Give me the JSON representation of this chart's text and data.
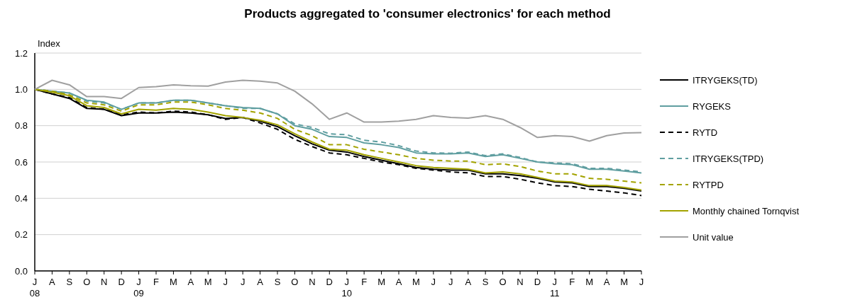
{
  "chart_data": {
    "type": "line",
    "title": "Products aggregated to 'consumer electronics' for each method",
    "ylabel": "Index",
    "categories": [
      "J\n08",
      "A",
      "S",
      "O",
      "N",
      "D",
      "J\n09",
      "F",
      "M",
      "A",
      "M",
      "J",
      "J",
      "A",
      "S",
      "O",
      "N",
      "D",
      "J\n10",
      "F",
      "M",
      "A",
      "M",
      "J",
      "J",
      "A",
      "S",
      "O",
      "N",
      "D",
      "J\n11",
      "F",
      "M",
      "A",
      "M",
      "J"
    ],
    "ylim": [
      0,
      1.2
    ],
    "yticks": [
      {
        "value": 0,
        "label": "0.0"
      },
      {
        "value": 0.2,
        "label": "0.2"
      },
      {
        "value": 0.4,
        "label": "0.4"
      },
      {
        "value": 0.6,
        "label": "0.6"
      },
      {
        "value": 0.8,
        "label": "0.8"
      },
      {
        "value": 1,
        "label": "1.0"
      },
      {
        "value": 1.2,
        "label": "1.2"
      }
    ],
    "grid": "y",
    "legend": "right",
    "series": [
      {
        "name": "ITRYGEKS(TD)",
        "color": "#000000",
        "line_style": "solid",
        "values": [
          1.0,
          0.975,
          0.95,
          0.895,
          0.89,
          0.855,
          0.87,
          0.87,
          0.875,
          0.87,
          0.86,
          0.84,
          0.845,
          0.825,
          0.795,
          0.745,
          0.7,
          0.665,
          0.655,
          0.63,
          0.61,
          0.59,
          0.57,
          0.56,
          0.555,
          0.555,
          0.535,
          0.535,
          0.525,
          0.51,
          0.49,
          0.485,
          0.465,
          0.465,
          0.455,
          0.44
        ]
      },
      {
        "name": "RYGEKS",
        "color": "#5f9ea0",
        "line_style": "solid",
        "values": [
          1.0,
          0.99,
          0.98,
          0.94,
          0.93,
          0.89,
          0.925,
          0.925,
          0.94,
          0.94,
          0.925,
          0.91,
          0.9,
          0.895,
          0.865,
          0.8,
          0.78,
          0.74,
          0.735,
          0.705,
          0.695,
          0.68,
          0.65,
          0.645,
          0.645,
          0.65,
          0.63,
          0.64,
          0.62,
          0.6,
          0.59,
          0.585,
          0.56,
          0.56,
          0.55,
          0.54
        ]
      },
      {
        "name": "RYTD",
        "color": "#000000",
        "line_style": "dashed",
        "values": [
          1.0,
          0.975,
          0.955,
          0.9,
          0.89,
          0.86,
          0.875,
          0.87,
          0.88,
          0.875,
          0.86,
          0.835,
          0.845,
          0.815,
          0.78,
          0.725,
          0.685,
          0.65,
          0.64,
          0.62,
          0.6,
          0.585,
          0.565,
          0.555,
          0.545,
          0.54,
          0.52,
          0.52,
          0.505,
          0.485,
          0.47,
          0.465,
          0.45,
          0.44,
          0.43,
          0.415
        ]
      },
      {
        "name": "ITRYGEKS(TPD)",
        "color": "#5f9ea0",
        "line_style": "dashed",
        "values": [
          1.0,
          0.99,
          0.98,
          0.935,
          0.925,
          0.89,
          0.925,
          0.925,
          0.94,
          0.94,
          0.925,
          0.91,
          0.895,
          0.895,
          0.865,
          0.81,
          0.79,
          0.755,
          0.75,
          0.72,
          0.71,
          0.69,
          0.66,
          0.65,
          0.648,
          0.655,
          0.635,
          0.645,
          0.625,
          0.6,
          0.595,
          0.59,
          0.565,
          0.565,
          0.555,
          0.545
        ]
      },
      {
        "name": "RYTPD",
        "color": "#a3a300",
        "line_style": "dashed",
        "values": [
          1.0,
          0.99,
          0.97,
          0.925,
          0.915,
          0.88,
          0.915,
          0.915,
          0.93,
          0.93,
          0.915,
          0.895,
          0.885,
          0.87,
          0.84,
          0.78,
          0.745,
          0.695,
          0.695,
          0.67,
          0.655,
          0.64,
          0.62,
          0.61,
          0.605,
          0.605,
          0.585,
          0.59,
          0.575,
          0.55,
          0.535,
          0.535,
          0.51,
          0.505,
          0.495,
          0.485
        ]
      },
      {
        "name": "Monthly chained Tornqvist",
        "color": "#a3a300",
        "line_style": "solid",
        "values": [
          1.0,
          0.985,
          0.965,
          0.91,
          0.9,
          0.865,
          0.89,
          0.885,
          0.895,
          0.89,
          0.875,
          0.855,
          0.845,
          0.83,
          0.805,
          0.755,
          0.71,
          0.67,
          0.665,
          0.64,
          0.62,
          0.6,
          0.58,
          0.57,
          0.565,
          0.56,
          0.54,
          0.545,
          0.535,
          0.515,
          0.495,
          0.49,
          0.47,
          0.47,
          0.46,
          0.445
        ]
      },
      {
        "name": "Unit value",
        "color": "#a0a0a0",
        "line_style": "solid",
        "values": [
          1.0,
          1.05,
          1.025,
          0.96,
          0.96,
          0.95,
          1.01,
          1.015,
          1.025,
          1.02,
          1.018,
          1.04,
          1.05,
          1.045,
          1.035,
          0.99,
          0.92,
          0.835,
          0.87,
          0.82,
          0.82,
          0.825,
          0.835,
          0.855,
          0.845,
          0.842,
          0.855,
          0.835,
          0.79,
          0.735,
          0.745,
          0.74,
          0.715,
          0.745,
          0.76,
          0.762
        ]
      }
    ]
  }
}
